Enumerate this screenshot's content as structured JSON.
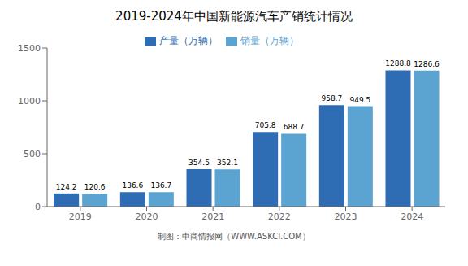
{
  "chart_data": {
    "type": "bar",
    "title": "2019-2024年中国新能源汽车产销统计情况",
    "categories": [
      "2019",
      "2020",
      "2021",
      "2022",
      "2023",
      "2024"
    ],
    "series": [
      {
        "name": "产量（万辆）",
        "color": "#2E6DB4",
        "values": [
          124.2,
          136.6,
          354.5,
          705.8,
          958.7,
          1288.8
        ]
      },
      {
        "name": "销量（万辆）",
        "color": "#5BA3D0",
        "values": [
          120.6,
          136.7,
          352.1,
          688.7,
          949.5,
          1286.6
        ]
      }
    ],
    "ylim": [
      0,
      1500
    ],
    "yticks": [
      0,
      500,
      1000,
      1500
    ],
    "grid": false,
    "legend": "top",
    "data_labels": true,
    "annotations": [
      "制图：中商情报网（WWW.ASKCI.COM）"
    ]
  }
}
